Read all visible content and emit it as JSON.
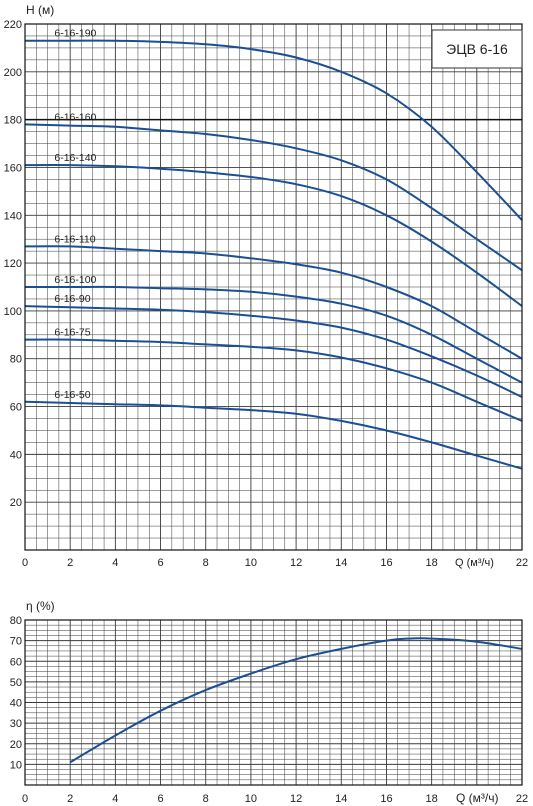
{
  "head_chart": {
    "type": "line",
    "title": "ЭЦВ 6-16",
    "ylabel": "H (м)",
    "xlabel": "Q (м³/ч)",
    "xlim": [
      0,
      22
    ],
    "ylim": [
      0,
      220
    ],
    "x_ticks": [
      0,
      2,
      4,
      6,
      8,
      10,
      12,
      14,
      16,
      18,
      22
    ],
    "y_ticks": [
      20,
      40,
      60,
      80,
      100,
      120,
      140,
      160,
      180,
      200,
      220
    ],
    "grid": true,
    "reference_line": 180,
    "series": [
      {
        "name": "6-16-190",
        "x": [
          0,
          2,
          4,
          6,
          8,
          10,
          12,
          14,
          16,
          18,
          20,
          22
        ],
        "y": [
          213,
          213,
          213,
          212.5,
          211.5,
          209.5,
          206,
          200,
          191,
          177,
          158,
          138
        ]
      },
      {
        "name": "6-16-160",
        "x": [
          0,
          2,
          4,
          6,
          8,
          10,
          12,
          14,
          16,
          18,
          20,
          22
        ],
        "y": [
          178,
          177.5,
          177,
          175.5,
          174,
          171.5,
          168,
          163,
          155,
          143,
          130,
          117
        ]
      },
      {
        "name": "6-16-140",
        "x": [
          0,
          2,
          4,
          6,
          8,
          10,
          12,
          14,
          16,
          18,
          20,
          22
        ],
        "y": [
          161,
          161,
          160.5,
          159.5,
          158,
          156,
          153,
          148,
          140,
          129,
          116,
          102
        ]
      },
      {
        "name": "6-16-110",
        "x": [
          0,
          2,
          4,
          6,
          8,
          10,
          12,
          14,
          16,
          18,
          20,
          22
        ],
        "y": [
          127,
          127,
          126,
          125,
          124,
          122,
          119.5,
          116,
          110,
          102,
          91,
          80
        ]
      },
      {
        "name": "6-16-100",
        "x": [
          0,
          2,
          4,
          6,
          8,
          10,
          12,
          14,
          16,
          18,
          20,
          22
        ],
        "y": [
          110,
          110,
          110,
          109.5,
          109,
          108,
          106,
          103,
          98,
          90,
          80,
          70
        ]
      },
      {
        "name": "6-16-90",
        "x": [
          0,
          2,
          4,
          6,
          8,
          10,
          12,
          14,
          16,
          18,
          20,
          22
        ],
        "y": [
          102,
          101.5,
          101,
          100.5,
          99.5,
          98,
          96,
          93,
          88,
          81,
          73,
          64
        ]
      },
      {
        "name": "6-16-75",
        "x": [
          0,
          2,
          4,
          6,
          8,
          10,
          12,
          14,
          16,
          18,
          20,
          22
        ],
        "y": [
          88,
          88,
          87.5,
          87,
          86,
          85,
          83.5,
          80.5,
          76,
          70,
          62,
          54
        ]
      },
      {
        "name": "6-16-50",
        "x": [
          0,
          2,
          4,
          6,
          8,
          10,
          12,
          14,
          16,
          18,
          20,
          22
        ],
        "y": [
          62,
          61.5,
          61,
          60.5,
          59.5,
          58.5,
          57,
          54,
          50,
          45,
          39.5,
          34
        ]
      }
    ]
  },
  "eff_chart": {
    "type": "line",
    "ylabel": "η (%)",
    "xlabel": "Q (м³/ч)",
    "xlim": [
      0,
      22
    ],
    "ylim": [
      0,
      80
    ],
    "x_ticks": [
      0,
      2,
      4,
      6,
      8,
      10,
      12,
      14,
      16,
      18,
      22
    ],
    "y_ticks": [
      10,
      20,
      30,
      40,
      50,
      60,
      70,
      80
    ],
    "grid": true,
    "series": [
      {
        "x": [
          2,
          4,
          6,
          8,
          10,
          12,
          14,
          16,
          17,
          18,
          20,
          22
        ],
        "y": [
          11,
          24,
          36,
          46,
          54,
          61,
          66,
          70,
          71,
          71,
          69.5,
          66
        ]
      }
    ]
  },
  "colors": {
    "curve": "#1b4f95",
    "grid": "#3a3a3a",
    "reference": "#111111"
  }
}
